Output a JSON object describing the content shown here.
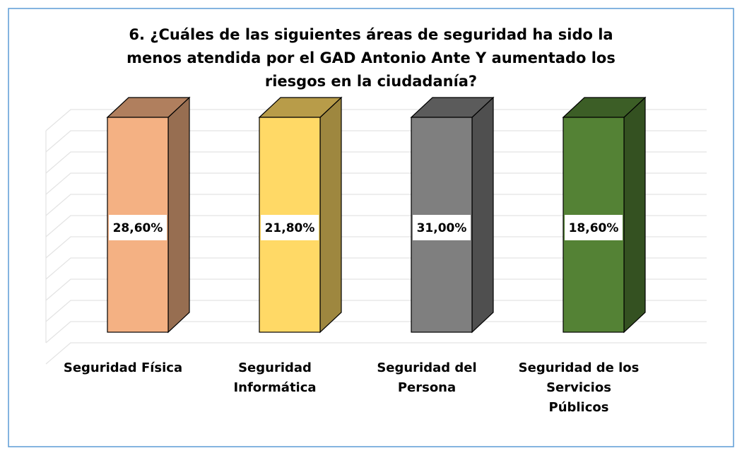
{
  "chart_data": {
    "type": "bar3d",
    "title": "6. ¿Cuáles de las siguientes áreas de seguridad ha sido la menos atendida por el GAD Antonio Ante Y aumentado los riesgos en la ciudadanía?",
    "categories": [
      "Seguridad Física",
      "Seguridad Informática",
      "Seguridad del Persona",
      "Seguridad de los Servicios Públicos"
    ],
    "values": [
      28.6,
      21.8,
      31.0,
      18.6
    ],
    "value_labels": [
      "28,60%",
      "21,80%",
      "31,00%",
      "18,60%"
    ],
    "colors": [
      "#f4b183",
      "#ffd966",
      "#7f7f7f",
      "#548235"
    ],
    "grid": true
  }
}
